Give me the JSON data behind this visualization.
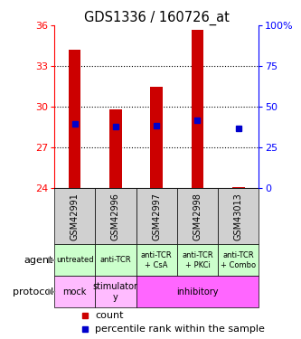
{
  "title": "GDS1336 / 160726_at",
  "samples": [
    "GSM42991",
    "GSM42996",
    "GSM42997",
    "GSM42998",
    "GSM43013"
  ],
  "bar_bottoms": [
    24.0,
    24.0,
    24.0,
    24.0,
    24.0
  ],
  "bar_tops": [
    34.2,
    29.8,
    31.5,
    35.7,
    24.08
  ],
  "percentile_values": [
    28.75,
    28.55,
    28.6,
    29.05,
    28.4
  ],
  "ylim": [
    24,
    36
  ],
  "yticks_left": [
    24,
    27,
    30,
    33,
    36
  ],
  "grid_lines": [
    27,
    30,
    33
  ],
  "bar_color": "#cc0000",
  "percentile_color": "#0000cc",
  "plot_bg": "#ffffff",
  "sample_bg": "#d0d0d0",
  "agent_labels": [
    "untreated",
    "anti-TCR",
    "anti-TCR\n+ CsA",
    "anti-TCR\n+ PKCi",
    "anti-TCR\n+ Combo"
  ],
  "agent_bg": "#ccffcc",
  "proto_defs": [
    [
      0,
      1,
      "#ffbbff",
      "mock"
    ],
    [
      1,
      2,
      "#ffbbff",
      "stimulator\ny"
    ],
    [
      2,
      5,
      "#ff66ff",
      "inhibitory"
    ]
  ],
  "legend_count_color": "#cc0000",
  "legend_pct_color": "#0000cc"
}
